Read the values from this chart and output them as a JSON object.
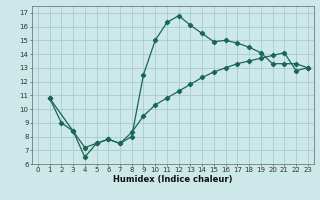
{
  "xlabel": "Humidex (Indice chaleur)",
  "bg_color": "#cce8e8",
  "grid_color": "#aacccc",
  "line_color": "#1a6655",
  "xlim": [
    -0.5,
    23.5
  ],
  "ylim": [
    6,
    17.5
  ],
  "xticks": [
    0,
    1,
    2,
    3,
    4,
    5,
    6,
    7,
    8,
    9,
    10,
    11,
    12,
    13,
    14,
    15,
    16,
    17,
    18,
    19,
    20,
    21,
    22,
    23
  ],
  "yticks": [
    6,
    7,
    8,
    9,
    10,
    11,
    12,
    13,
    14,
    15,
    16,
    17
  ],
  "line1_x": [
    1,
    2,
    3,
    4,
    5,
    6,
    7,
    8,
    9,
    10,
    11,
    12,
    13,
    14,
    15,
    16,
    17,
    18,
    19,
    20,
    21,
    22,
    23
  ],
  "line1_y": [
    10.8,
    9.0,
    8.4,
    7.2,
    7.5,
    7.8,
    7.5,
    8.0,
    12.5,
    15.0,
    16.3,
    16.8,
    16.1,
    15.5,
    14.9,
    15.0,
    14.8,
    14.5,
    14.1,
    13.3,
    13.3,
    13.3,
    13.0
  ],
  "line2_x": [
    1,
    3,
    4,
    5,
    6,
    7,
    8,
    9,
    10,
    11,
    12,
    13,
    14,
    15,
    16,
    17,
    18,
    19,
    20,
    21,
    22,
    23
  ],
  "line2_y": [
    10.8,
    8.4,
    6.5,
    7.5,
    7.8,
    7.5,
    8.3,
    9.5,
    10.3,
    10.8,
    11.3,
    11.8,
    12.3,
    12.7,
    13.0,
    13.3,
    13.5,
    13.7,
    13.9,
    14.1,
    12.8,
    13.0
  ],
  "xlabel_fontsize": 6,
  "tick_fontsize": 5,
  "linewidth": 0.9,
  "markersize": 2.2
}
